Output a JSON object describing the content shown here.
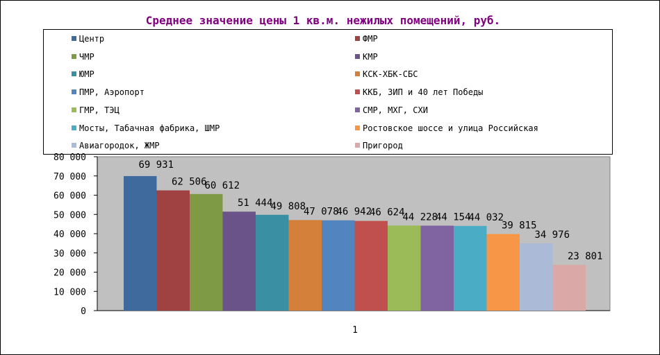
{
  "chart_data": {
    "type": "bar",
    "title": "Среднее значение цены 1 кв.м. нежилых помещений, руб.",
    "categories": [
      "1"
    ],
    "ylim": [
      0,
      80000
    ],
    "yticks": [
      "0",
      "10 000",
      "20 000",
      "30 000",
      "40 000",
      "50 000",
      "60 000",
      "70 000",
      "80 000"
    ],
    "legend_position": "top",
    "grid": false,
    "series": [
      {
        "name": "Центр",
        "value": 69931,
        "label": "69 931",
        "color": "#3F6A9E"
      },
      {
        "name": "ФМР",
        "value": 62506,
        "label": "62 506",
        "color": "#A04241"
      },
      {
        "name": "ЧМР",
        "value": 60612,
        "label": "60 612",
        "color": "#7F9A45"
      },
      {
        "name": "КМР",
        "value": 51444,
        "label": "51 444",
        "color": "#6A5388"
      },
      {
        "name": "ЮМР",
        "value": 49808,
        "label": "49 808",
        "color": "#3A8FA2"
      },
      {
        "name": "КСК-ХБК-СБС",
        "value": 47078,
        "label": "47 078",
        "color": "#D47F3A"
      },
      {
        "name": "ПМР, Аэропорт",
        "value": 46942,
        "label": "46 942",
        "color": "#5284C0"
      },
      {
        "name": "ККБ, ЗИП и 40 лет Победы",
        "value": 46624,
        "label": "46 624",
        "color": "#C0504D"
      },
      {
        "name": "ГМР, ТЭЦ",
        "value": 44228,
        "label": "44 228",
        "color": "#9BBB59"
      },
      {
        "name": "СМР, МХГ, СХИ",
        "value": 44154,
        "label": "44 154",
        "color": "#8064A2"
      },
      {
        "name": "Мосты, Табачная фабрика, ШМР",
        "value": 44032,
        "label": "44 032",
        "color": "#4BACC6"
      },
      {
        "name": "Ростовское шоссе и улица Российская",
        "value": 39815,
        "label": "39 815",
        "color": "#F79646"
      },
      {
        "name": "Авиагородок, ЖМР",
        "value": 34976,
        "label": "34 976",
        "color": "#AABAD7"
      },
      {
        "name": "Пригород",
        "value": 23801,
        "label": "23 801",
        "color": "#D9A8A7"
      }
    ],
    "colors": {
      "plot_area": "#C0C0C0",
      "title": "#800080"
    }
  }
}
